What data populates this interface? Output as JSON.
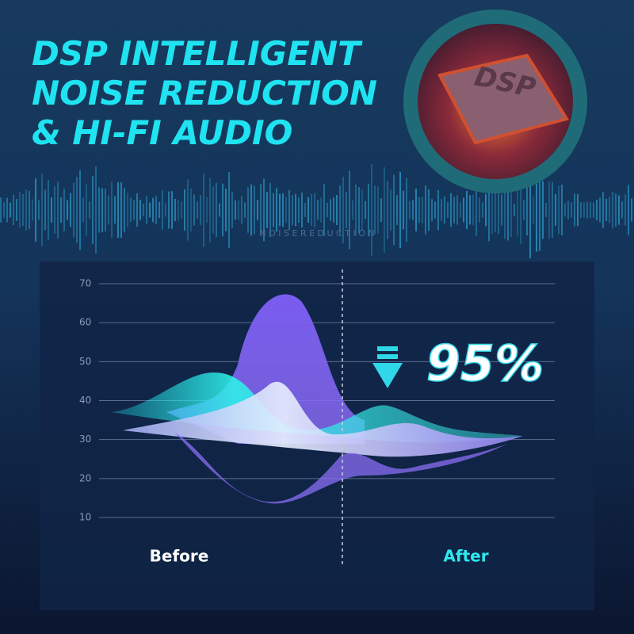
{
  "header": {
    "title_lines": [
      "DSP INTELLIGENT",
      "NOISE REDUCTION",
      "& HI-FI AUDIO"
    ]
  },
  "chip": {
    "label": "DSP"
  },
  "watermark": "N O I S E   R E D U C T I O N",
  "chart": {
    "ylim": [
      10,
      70
    ],
    "yticks": [
      10,
      20,
      30,
      40,
      50,
      60,
      70
    ],
    "labels": {
      "before": "Before",
      "after": "After"
    },
    "badge": "95%"
  }
}
